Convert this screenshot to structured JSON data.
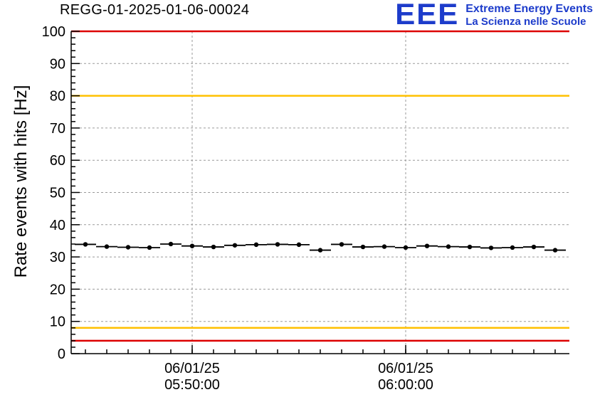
{
  "page": {
    "background": "#ffffff"
  },
  "header": {
    "title": "REGG-01-2025-01-06-00024",
    "logo": {
      "acronym": "EEE",
      "line1": "Extreme Energy Events",
      "line2": "La Scienza nelle Scuole",
      "color": "#1d3ccb"
    }
  },
  "chart_data": {
    "type": "line",
    "title": "REGG-01-2025-01-06-00024",
    "xlabel": "",
    "ylabel": "Rate events with hits [Hz]",
    "ylim": [
      0,
      100
    ],
    "y_tick_step": 10,
    "y_minor_step": 2,
    "grid": true,
    "x_range": [
      "05:44:20",
      "06:07:40"
    ],
    "x_minor_step_minutes": 1,
    "x_major_ticks": [
      {
        "time": "05:50:00",
        "label_line1": "06/01/25",
        "label_line2": "05:50:00"
      },
      {
        "time": "06:00:00",
        "label_line1": "06/01/25",
        "label_line2": "06:00:00"
      }
    ],
    "limit_lines": [
      {
        "value": 100,
        "color": "#dd0000"
      },
      {
        "value": 80,
        "color": "#ffc000"
      },
      {
        "value": 8,
        "color": "#ffc000"
      },
      {
        "value": 4,
        "color": "#dd0000"
      }
    ],
    "series": [
      {
        "name": "rate-events-with-hits",
        "color": "#000000",
        "marker": "circle",
        "bin_halfwidth_minutes": 0.5,
        "points": [
          {
            "t": "05:45:00",
            "v": 33.9
          },
          {
            "t": "05:46:00",
            "v": 33.2
          },
          {
            "t": "05:47:00",
            "v": 33.0
          },
          {
            "t": "05:48:00",
            "v": 32.9
          },
          {
            "t": "05:49:00",
            "v": 34.0
          },
          {
            "t": "05:50:00",
            "v": 33.4
          },
          {
            "t": "05:51:00",
            "v": 33.1
          },
          {
            "t": "05:52:00",
            "v": 33.6
          },
          {
            "t": "05:53:00",
            "v": 33.8
          },
          {
            "t": "05:54:00",
            "v": 33.9
          },
          {
            "t": "05:55:00",
            "v": 33.8
          },
          {
            "t": "05:56:00",
            "v": 32.1
          },
          {
            "t": "05:57:00",
            "v": 33.9
          },
          {
            "t": "05:58:00",
            "v": 33.1
          },
          {
            "t": "05:59:00",
            "v": 33.2
          },
          {
            "t": "06:00:00",
            "v": 32.9
          },
          {
            "t": "06:01:00",
            "v": 33.4
          },
          {
            "t": "06:02:00",
            "v": 33.2
          },
          {
            "t": "06:03:00",
            "v": 33.1
          },
          {
            "t": "06:04:00",
            "v": 32.8
          },
          {
            "t": "06:05:00",
            "v": 32.9
          },
          {
            "t": "06:06:00",
            "v": 33.1
          },
          {
            "t": "06:07:00",
            "v": 32.1
          }
        ]
      }
    ]
  }
}
